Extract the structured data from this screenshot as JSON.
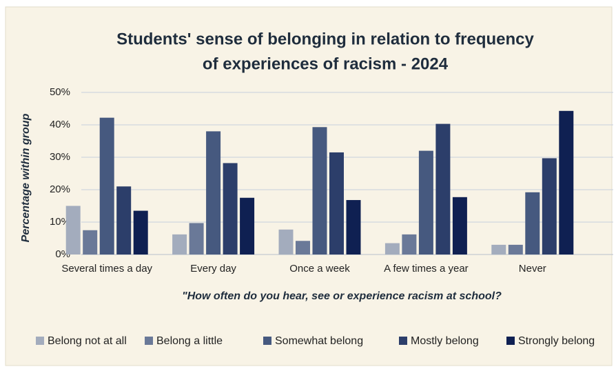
{
  "chart_data": {
    "type": "bar",
    "title": [
      "Students' sense of belonging in relation to frequency",
      "of experiences of racism - 2024"
    ],
    "y_label": "Percentage within group",
    "x_label": "\"How often do you hear, see or experience racism at school?",
    "categories": [
      "Several times a day",
      "Every day",
      "Once a week",
      "A few times a year",
      "Never"
    ],
    "series": [
      {
        "name": "Belong not at all",
        "color": "#a3acbd",
        "values": [
          15,
          6.2,
          7.7,
          3.5,
          3
        ]
      },
      {
        "name": "Belong a little",
        "color": "#6a7998",
        "values": [
          7.5,
          9.7,
          4.2,
          6.2,
          3
        ]
      },
      {
        "name": "Somewhat belong",
        "color": "#46597f",
        "values": [
          42.2,
          38,
          39.3,
          32,
          19.2
        ]
      },
      {
        "name": "Mostly belong",
        "color": "#2c3e6a",
        "values": [
          21,
          28.2,
          31.5,
          40.3,
          29.7
        ]
      },
      {
        "name": "Strongly belong",
        "color": "#0f2052",
        "values": [
          13.5,
          17.5,
          16.8,
          17.7,
          44.3
        ]
      }
    ],
    "ylim": [
      0,
      50
    ],
    "yticks": [
      {
        "value": 0,
        "label": "0%"
      },
      {
        "value": 10,
        "label": "10%"
      },
      {
        "value": 20,
        "label": "20%"
      },
      {
        "value": 30,
        "label": "30%"
      },
      {
        "value": 40,
        "label": "40%"
      },
      {
        "value": 50,
        "label": "50%"
      }
    ],
    "grid": true,
    "legend": "bottom"
  }
}
